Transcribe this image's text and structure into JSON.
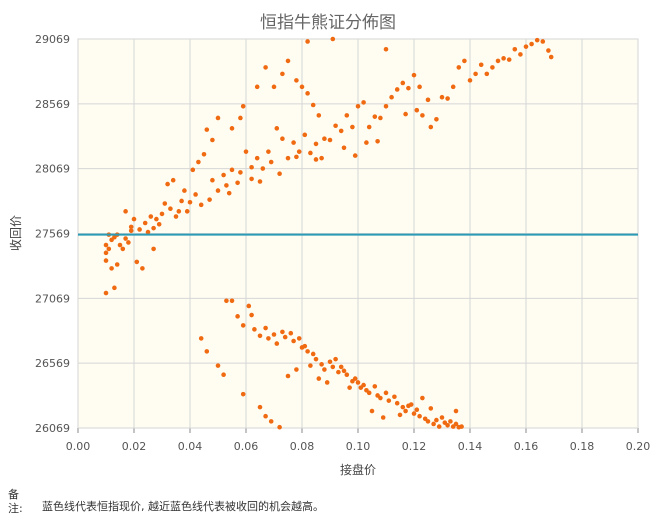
{
  "chart_data": {
    "type": "scatter",
    "title": "恒指牛熊证分佈图",
    "xlabel": "接盘价",
    "ylabel": "收回价",
    "xlim": [
      0,
      0.2
    ],
    "ylim": [
      26069,
      29069
    ],
    "x_ticks": [
      "0.00",
      "0.02",
      "0.04",
      "0.06",
      "0.08",
      "0.10",
      "0.12",
      "0.14",
      "0.16",
      "0.18",
      "0.20"
    ],
    "y_ticks": [
      "26069",
      "26569",
      "27069",
      "27569",
      "28069",
      "28569",
      "29069"
    ],
    "grid": true,
    "reference_line": {
      "y": 27560,
      "color": "#2a9ab5"
    },
    "point_color": "#f06a12",
    "plot_background": "#fffdf2",
    "series": [
      {
        "points": [
          [
            0.01,
            27110
          ],
          [
            0.01,
            27360
          ],
          [
            0.01,
            27420
          ],
          [
            0.011,
            27450
          ],
          [
            0.01,
            27480
          ],
          [
            0.012,
            27520
          ],
          [
            0.011,
            27560
          ],
          [
            0.013,
            27540
          ],
          [
            0.014,
            27560
          ],
          [
            0.012,
            27300
          ],
          [
            0.013,
            27150
          ],
          [
            0.014,
            27330
          ],
          [
            0.016,
            27450
          ],
          [
            0.018,
            27500
          ],
          [
            0.019,
            27620
          ],
          [
            0.02,
            27680
          ],
          [
            0.017,
            27740
          ],
          [
            0.022,
            27600
          ],
          [
            0.024,
            27650
          ],
          [
            0.025,
            27580
          ],
          [
            0.026,
            27700
          ],
          [
            0.023,
            27300
          ],
          [
            0.021,
            27350
          ],
          [
            0.027,
            27450
          ],
          [
            0.028,
            27680
          ],
          [
            0.03,
            27720
          ],
          [
            0.031,
            27800
          ],
          [
            0.032,
            27950
          ],
          [
            0.034,
            27980
          ],
          [
            0.033,
            27760
          ],
          [
            0.036,
            27740
          ],
          [
            0.037,
            27820
          ],
          [
            0.038,
            27900
          ],
          [
            0.04,
            27810
          ],
          [
            0.042,
            27870
          ],
          [
            0.041,
            28060
          ],
          [
            0.043,
            28120
          ],
          [
            0.045,
            28180
          ],
          [
            0.048,
            27980
          ],
          [
            0.05,
            27900
          ],
          [
            0.052,
            28020
          ],
          [
            0.053,
            27940
          ],
          [
            0.054,
            27880
          ],
          [
            0.055,
            28060
          ],
          [
            0.057,
            27960
          ],
          [
            0.058,
            28040
          ],
          [
            0.06,
            28200
          ],
          [
            0.062,
            28080
          ],
          [
            0.064,
            28150
          ],
          [
            0.066,
            28070
          ],
          [
            0.068,
            28200
          ],
          [
            0.069,
            28120
          ],
          [
            0.071,
            28380
          ],
          [
            0.073,
            28300
          ],
          [
            0.075,
            28150
          ],
          [
            0.077,
            28270
          ],
          [
            0.079,
            28200
          ],
          [
            0.081,
            28330
          ],
          [
            0.083,
            28190
          ],
          [
            0.085,
            28260
          ],
          [
            0.087,
            28150
          ],
          [
            0.046,
            28370
          ],
          [
            0.048,
            28290
          ],
          [
            0.05,
            28460
          ],
          [
            0.055,
            28380
          ],
          [
            0.058,
            28460
          ],
          [
            0.059,
            28550
          ],
          [
            0.064,
            28700
          ],
          [
            0.067,
            28850
          ],
          [
            0.07,
            28700
          ],
          [
            0.073,
            28800
          ],
          [
            0.075,
            28900
          ],
          [
            0.078,
            28750
          ],
          [
            0.08,
            28700
          ],
          [
            0.082,
            28650
          ],
          [
            0.084,
            28560
          ],
          [
            0.086,
            28480
          ],
          [
            0.088,
            28300
          ],
          [
            0.09,
            28290
          ],
          [
            0.092,
            28400
          ],
          [
            0.094,
            28360
          ],
          [
            0.096,
            28480
          ],
          [
            0.098,
            28390
          ],
          [
            0.1,
            28550
          ],
          [
            0.102,
            28580
          ],
          [
            0.104,
            28390
          ],
          [
            0.106,
            28470
          ],
          [
            0.108,
            28460
          ],
          [
            0.11,
            28550
          ],
          [
            0.112,
            28620
          ],
          [
            0.114,
            28680
          ],
          [
            0.116,
            28730
          ],
          [
            0.118,
            28690
          ],
          [
            0.12,
            28790
          ],
          [
            0.122,
            28700
          ],
          [
            0.125,
            28600
          ],
          [
            0.128,
            28450
          ],
          [
            0.13,
            28620
          ],
          [
            0.132,
            28610
          ],
          [
            0.134,
            28700
          ],
          [
            0.136,
            28850
          ],
          [
            0.138,
            28900
          ],
          [
            0.14,
            28750
          ],
          [
            0.142,
            28800
          ],
          [
            0.144,
            28870
          ],
          [
            0.146,
            28800
          ],
          [
            0.148,
            28850
          ],
          [
            0.15,
            28900
          ],
          [
            0.152,
            28920
          ],
          [
            0.154,
            28910
          ],
          [
            0.156,
            28990
          ],
          [
            0.158,
            28950
          ],
          [
            0.16,
            29010
          ],
          [
            0.162,
            29030
          ],
          [
            0.164,
            29060
          ],
          [
            0.166,
            29050
          ],
          [
            0.168,
            28980
          ],
          [
            0.169,
            28930
          ],
          [
            0.082,
            29050
          ],
          [
            0.091,
            29069
          ],
          [
            0.11,
            28990
          ],
          [
            0.117,
            28490
          ],
          [
            0.123,
            28480
          ],
          [
            0.126,
            28390
          ],
          [
            0.121,
            28520
          ],
          [
            0.095,
            28230
          ],
          [
            0.099,
            28170
          ],
          [
            0.103,
            28270
          ],
          [
            0.107,
            28280
          ],
          [
            0.085,
            28140
          ],
          [
            0.078,
            28160
          ],
          [
            0.072,
            28030
          ],
          [
            0.065,
            27970
          ],
          [
            0.062,
            27990
          ],
          [
            0.047,
            27830
          ],
          [
            0.044,
            27790
          ],
          [
            0.039,
            27740
          ],
          [
            0.035,
            27700
          ],
          [
            0.029,
            27640
          ],
          [
            0.027,
            27610
          ],
          [
            0.019,
            27590
          ],
          [
            0.017,
            27530
          ],
          [
            0.015,
            27480
          ],
          [
            0.044,
            26760
          ],
          [
            0.046,
            26660
          ],
          [
            0.05,
            26550
          ],
          [
            0.052,
            26480
          ],
          [
            0.053,
            27050
          ],
          [
            0.055,
            27050
          ],
          [
            0.057,
            26930
          ],
          [
            0.059,
            26860
          ],
          [
            0.061,
            27010
          ],
          [
            0.062,
            26940
          ],
          [
            0.063,
            26830
          ],
          [
            0.065,
            26780
          ],
          [
            0.067,
            26840
          ],
          [
            0.068,
            26760
          ],
          [
            0.07,
            26790
          ],
          [
            0.071,
            26720
          ],
          [
            0.073,
            26810
          ],
          [
            0.074,
            26770
          ],
          [
            0.076,
            26800
          ],
          [
            0.077,
            26740
          ],
          [
            0.079,
            26760
          ],
          [
            0.08,
            26690
          ],
          [
            0.081,
            26700
          ],
          [
            0.082,
            26660
          ],
          [
            0.084,
            26640
          ],
          [
            0.085,
            26600
          ],
          [
            0.087,
            26560
          ],
          [
            0.088,
            26520
          ],
          [
            0.09,
            26580
          ],
          [
            0.091,
            26540
          ],
          [
            0.092,
            26600
          ],
          [
            0.094,
            26540
          ],
          [
            0.095,
            26510
          ],
          [
            0.096,
            26480
          ],
          [
            0.098,
            26430
          ],
          [
            0.099,
            26450
          ],
          [
            0.1,
            26420
          ],
          [
            0.101,
            26380
          ],
          [
            0.102,
            26400
          ],
          [
            0.103,
            26360
          ],
          [
            0.104,
            26340
          ],
          [
            0.106,
            26390
          ],
          [
            0.107,
            26320
          ],
          [
            0.108,
            26300
          ],
          [
            0.11,
            26340
          ],
          [
            0.111,
            26280
          ],
          [
            0.113,
            26310
          ],
          [
            0.114,
            26260
          ],
          [
            0.116,
            26230
          ],
          [
            0.117,
            26200
          ],
          [
            0.118,
            26240
          ],
          [
            0.12,
            26180
          ],
          [
            0.121,
            26210
          ],
          [
            0.122,
            26160
          ],
          [
            0.124,
            26140
          ],
          [
            0.125,
            26120
          ],
          [
            0.127,
            26100
          ],
          [
            0.128,
            26130
          ],
          [
            0.13,
            26150
          ],
          [
            0.131,
            26110
          ],
          [
            0.132,
            26090
          ],
          [
            0.134,
            26080
          ],
          [
            0.135,
            26100
          ],
          [
            0.136,
            26075
          ],
          [
            0.137,
            26080
          ],
          [
            0.059,
            26330
          ],
          [
            0.065,
            26230
          ],
          [
            0.067,
            26160
          ],
          [
            0.069,
            26120
          ],
          [
            0.072,
            26075
          ],
          [
            0.075,
            26470
          ],
          [
            0.078,
            26520
          ],
          [
            0.083,
            26550
          ],
          [
            0.086,
            26450
          ],
          [
            0.089,
            26420
          ],
          [
            0.093,
            26500
          ],
          [
            0.097,
            26380
          ],
          [
            0.105,
            26200
          ],
          [
            0.109,
            26150
          ],
          [
            0.115,
            26170
          ],
          [
            0.119,
            26250
          ],
          [
            0.123,
            26300
          ],
          [
            0.126,
            26220
          ],
          [
            0.129,
            26080
          ],
          [
            0.133,
            26120
          ],
          [
            0.135,
            26200
          ]
        ]
      }
    ],
    "note_label": "备注:",
    "note_text": "蓝色线代表恒指现价, 越近蓝色线代表被收回的机会越高。"
  }
}
